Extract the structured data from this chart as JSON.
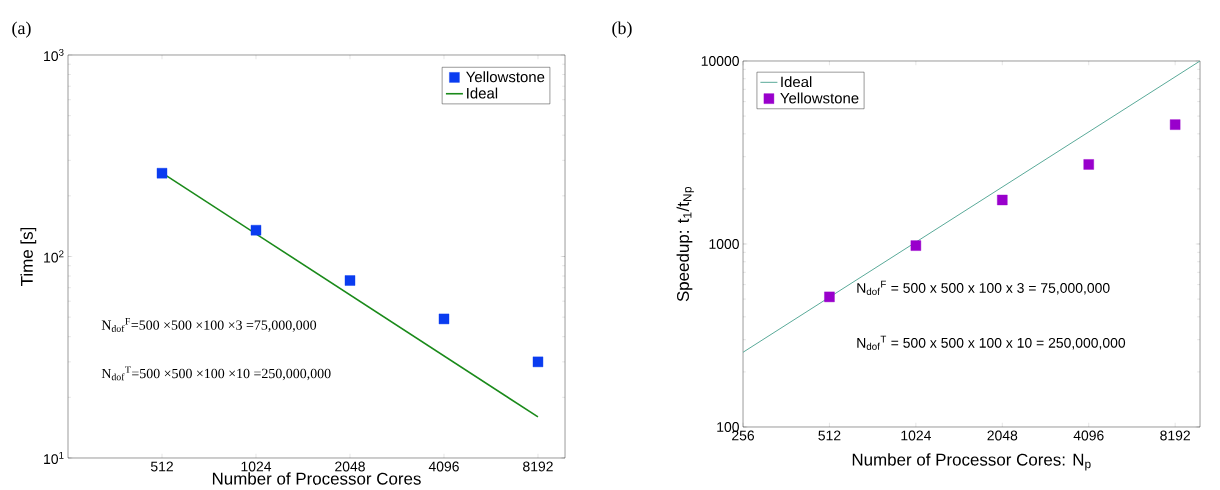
{
  "chart_data": [
    {
      "type": "scatter",
      "title": "(a)",
      "xlabel": "Number of Processor Cores",
      "ylabel": "Time [s]",
      "log": "xy",
      "xlim": [
        256,
        10000
      ],
      "ylim": [
        10,
        1000
      ],
      "xticks": [
        512,
        1024,
        2048,
        4096,
        8192
      ],
      "yticks": [
        {
          "value": 10,
          "label": "10$^{1}$"
        },
        {
          "value": 100,
          "label": "10$^{2}$"
        },
        {
          "value": 1000,
          "label": "10$^{3}$"
        }
      ],
      "legend": "top right",
      "grid": false,
      "series": [
        {
          "name": "Yellowstone",
          "marker": "square",
          "color": "#0a3cf0",
          "x": [
            512,
            1024,
            2048,
            4096,
            8192
          ],
          "values": [
            259,
            135,
            76,
            49,
            30
          ]
        },
        {
          "name": "Ideal",
          "type": "line",
          "marker": "none",
          "color": "#1a8a1a",
          "x": [
            512,
            8192
          ],
          "values": [
            260,
            16
          ]
        }
      ],
      "annotations": [
        "N$_{dof}$$^{F}$=500 ×500 ×100 ×3 =75,000,000",
        "N$_{dof}$$^{T}$=500 ×500 ×100 ×10 =250,000,000"
      ]
    },
    {
      "type": "scatter",
      "title": "(b)",
      "xlabel": "Number of Processor Cores: N$_{p}$",
      "ylabel": "Speedup: t$_{1}$/t$_{N}$$_{p}$",
      "log": "xy",
      "xlim": [
        256,
        10000
      ],
      "ylim": [
        100,
        10000
      ],
      "xticks": [
        256,
        512,
        1024,
        2048,
        4096,
        8192
      ],
      "yticks": [
        100,
        1000,
        10000
      ],
      "legend": "top left",
      "grid": false,
      "series": [
        {
          "name": "Ideal",
          "type": "line",
          "marker": "none",
          "color": "#5aaa99",
          "x": [
            256,
            10000
          ],
          "values": [
            256,
            10000
          ]
        },
        {
          "name": "Yellowstone",
          "marker": "square",
          "color": "#9900cc",
          "x": [
            512,
            1024,
            2048,
            4096,
            8192
          ],
          "values": [
            514,
            980,
            1740,
            2720,
            4490
          ]
        }
      ],
      "annotations": [
        "N$_{dof}$$^{F}$ = 500 x 500 x 100 x 3 = 75,000,000",
        "N$_{dof}$$^{T}$ = 500 x 500 x 100 x 10 = 250,000,000"
      ]
    }
  ]
}
